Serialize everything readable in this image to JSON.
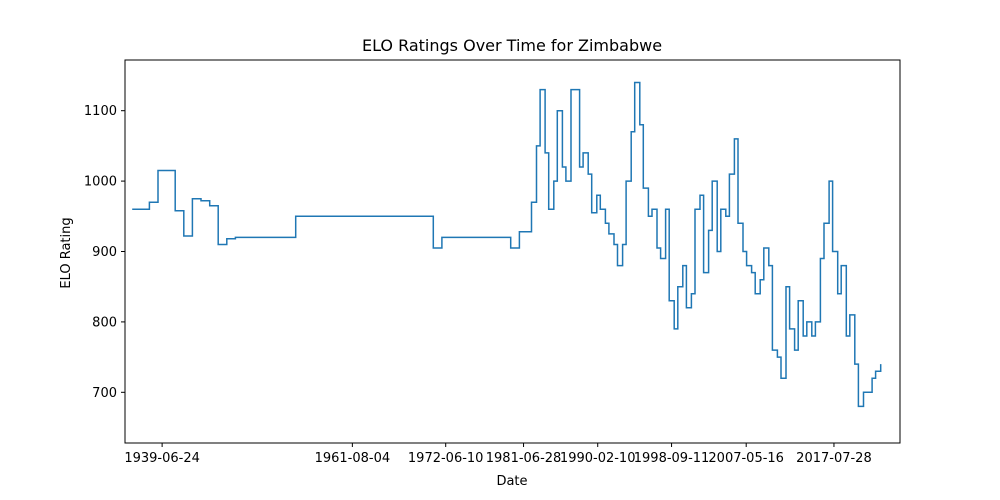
{
  "chart_data": {
    "type": "line",
    "title": "ELO Ratings Over Time for Zimbabwe",
    "xlabel": "Date",
    "ylabel": "ELO Rating",
    "x_ticks": [
      "1939-06-24",
      "1961-08-04",
      "1972-06-10",
      "1981-06-28",
      "1990-02-10",
      "1998-09-11",
      "2007-05-16",
      "2017-07-28"
    ],
    "y_ticks": [
      700,
      800,
      900,
      1000,
      1100
    ],
    "xlim": [
      "1935-03-01",
      "2025-04-01"
    ],
    "ylim": [
      628,
      1172
    ],
    "grid": false,
    "colors": {
      "line": "#1f77b4"
    },
    "series": [
      {
        "x": [
          "1936-01-01",
          "1937-01-01",
          "1938-01-01",
          "1939-01-01",
          "1940-01-01",
          "1941-01-01",
          "1942-01-01",
          "1943-01-01",
          "1944-01-01",
          "1945-01-01",
          "1946-01-01",
          "1947-01-01",
          "1948-01-01",
          "1949-01-01",
          "1950-01-01",
          "1955-01-01",
          "1960-01-01",
          "1965-01-01",
          "1968-01-01",
          "1970-01-01",
          "1971-01-01",
          "1971-06-01",
          "1972-01-01",
          "1973-01-01",
          "1974-01-01",
          "1975-01-01",
          "1978-01-01",
          "1980-01-01",
          "1981-01-01",
          "1982-01-01",
          "1982-06-01",
          "1983-01-01",
          "1983-06-01",
          "1984-01-01",
          "1984-06-01",
          "1985-01-01",
          "1985-06-01",
          "1986-01-01",
          "1986-06-01",
          "1987-01-01",
          "1987-06-01",
          "1988-01-01",
          "1988-06-01",
          "1989-01-01",
          "1989-06-01",
          "1990-01-01",
          "1990-06-01",
          "1991-01-01",
          "1991-06-01",
          "1992-01-01",
          "1992-06-01",
          "1993-01-01",
          "1993-06-01",
          "1994-01-01",
          "1994-06-01",
          "1995-01-01",
          "1995-06-01",
          "1996-01-01",
          "1996-06-01",
          "1997-01-01",
          "1997-06-01",
          "1998-01-01",
          "1998-06-01",
          "1999-01-01",
          "1999-06-01",
          "2000-01-01",
          "2000-06-01",
          "2001-01-01",
          "2001-06-01",
          "2002-01-01",
          "2002-06-01",
          "2003-01-01",
          "2003-06-01",
          "2004-01-01",
          "2004-06-01",
          "2005-01-01",
          "2005-06-01",
          "2006-01-01",
          "2006-06-01",
          "2007-01-01",
          "2007-06-01",
          "2008-01-01",
          "2008-06-01",
          "2009-01-01",
          "2009-06-01",
          "2010-01-01",
          "2010-06-01",
          "2011-01-01",
          "2011-06-01",
          "2012-01-01",
          "2012-06-01",
          "2013-01-01",
          "2013-06-01",
          "2014-01-01",
          "2014-06-01",
          "2015-01-01",
          "2015-06-01",
          "2016-01-01",
          "2016-06-01",
          "2017-01-01",
          "2017-06-01",
          "2018-01-01",
          "2018-06-01",
          "2019-01-01",
          "2019-06-01",
          "2020-01-01",
          "2020-06-01",
          "2021-01-01",
          "2021-06-01",
          "2022-01-01",
          "2022-06-01",
          "2023-01-01"
        ],
        "y": [
          960,
          960,
          970,
          1015,
          1015,
          958,
          922,
          975,
          972,
          965,
          910,
          918,
          920,
          920,
          920,
          950,
          950,
          950,
          950,
          950,
          905,
          905,
          920,
          920,
          920,
          920,
          920,
          905,
          928,
          928,
          970,
          1050,
          1130,
          1040,
          960,
          1000,
          1100,
          1020,
          1000,
          1130,
          1130,
          1020,
          1040,
          1010,
          955,
          980,
          960,
          940,
          925,
          910,
          880,
          910,
          1000,
          1070,
          1140,
          1080,
          990,
          950,
          960,
          905,
          890,
          960,
          830,
          790,
          850,
          880,
          820,
          840,
          960,
          980,
          870,
          930,
          1000,
          900,
          960,
          950,
          1010,
          1060,
          940,
          900,
          880,
          870,
          840,
          860,
          905,
          880,
          760,
          750,
          720,
          850,
          790,
          760,
          830,
          780,
          800,
          780,
          800,
          890,
          940,
          1000,
          900,
          840,
          880,
          780,
          810,
          740,
          680,
          700,
          700,
          720,
          730,
          740
        ]
      }
    ]
  }
}
